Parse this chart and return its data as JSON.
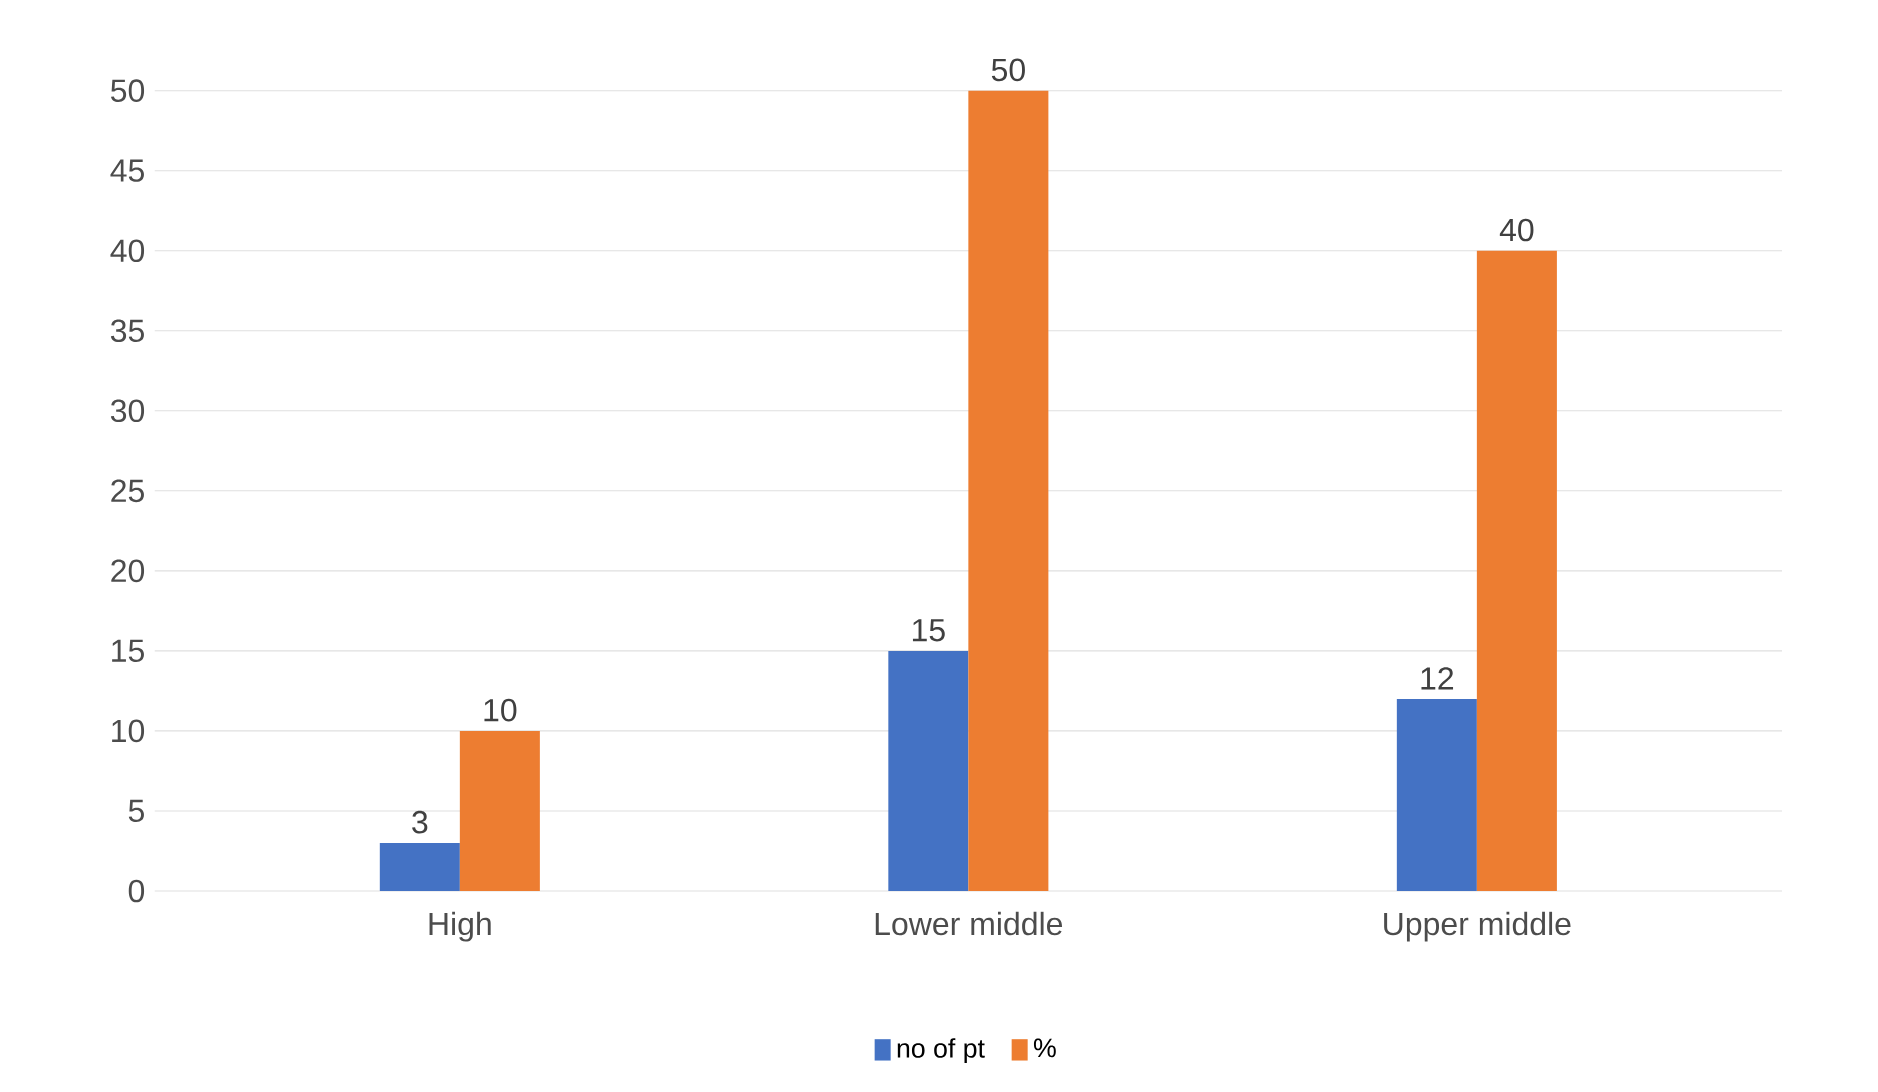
{
  "chart_data": {
    "type": "bar",
    "categories": [
      "High",
      "Lower middle",
      "Upper middle"
    ],
    "series": [
      {
        "name": "no of pt",
        "color": "#4472c4",
        "values": [
          3,
          15,
          12
        ]
      },
      {
        "name": "%",
        "color": "#ed7d31",
        "values": [
          10,
          50,
          40
        ]
      }
    ],
    "ylim": [
      0,
      50
    ],
    "yticks": [
      0,
      5,
      10,
      15,
      20,
      25,
      30,
      35,
      40,
      45,
      50
    ],
    "grid": "y",
    "legend": "bottom",
    "data_labels": true
  }
}
